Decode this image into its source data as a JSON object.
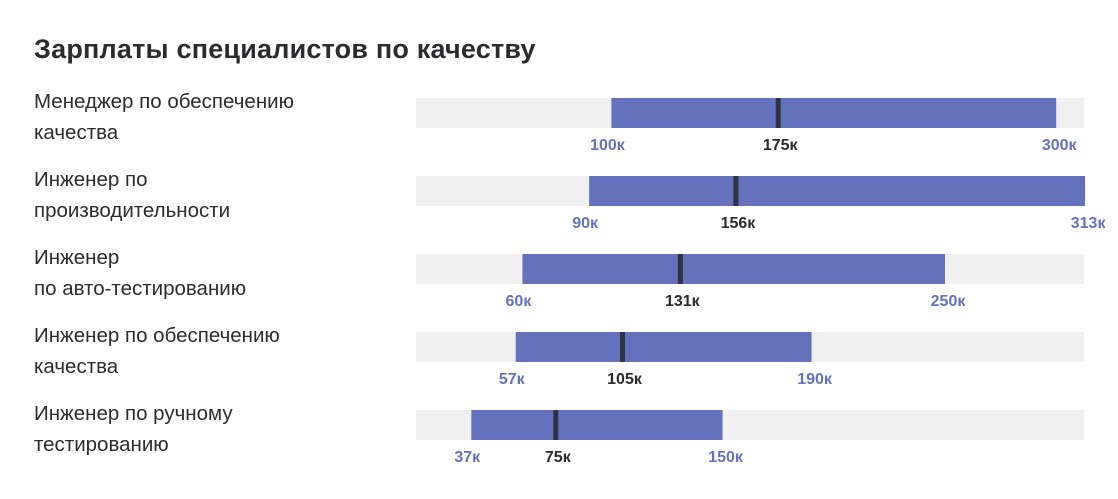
{
  "chart_data": {
    "type": "bar",
    "title": "Зарплаты специалистов по качеству",
    "xlabel": "",
    "ylabel": "",
    "x_range": [
      0,
      360
    ],
    "unit_suffix": "к",
    "categories": [
      [
        "Менеджер по обеспечению",
        "качества"
      ],
      [
        "Инженер по",
        "производительности"
      ],
      [
        "Инженер",
        "по авто-тестированию"
      ],
      [
        "Инженер по обеспечению",
        "качества"
      ],
      [
        "Инженер по ручному",
        "тестированию"
      ]
    ],
    "series": [
      {
        "name": "",
        "values": [
          100,
          90,
          60,
          57,
          37
        ]
      },
      {
        "name": "",
        "values": [
          175,
          156,
          131,
          105,
          75
        ]
      },
      {
        "name": "",
        "values": [
          300,
          313,
          250,
          190,
          150
        ]
      }
    ],
    "min_labels": [
      "100к",
      "90к",
      "60к",
      "57к",
      "37к"
    ],
    "median_labels": [
      "175к",
      "156к",
      "131к",
      "105к",
      "75к"
    ],
    "max_labels": [
      "300к",
      "313к",
      "250к",
      "190к",
      "150к"
    ]
  },
  "colors": {
    "track": "#f0f0f0",
    "range": "#6472bd",
    "median_line": "#2f3242",
    "range_label": "#6472bd",
    "median_label": "#2b2b30",
    "text": "#2b2b30"
  }
}
